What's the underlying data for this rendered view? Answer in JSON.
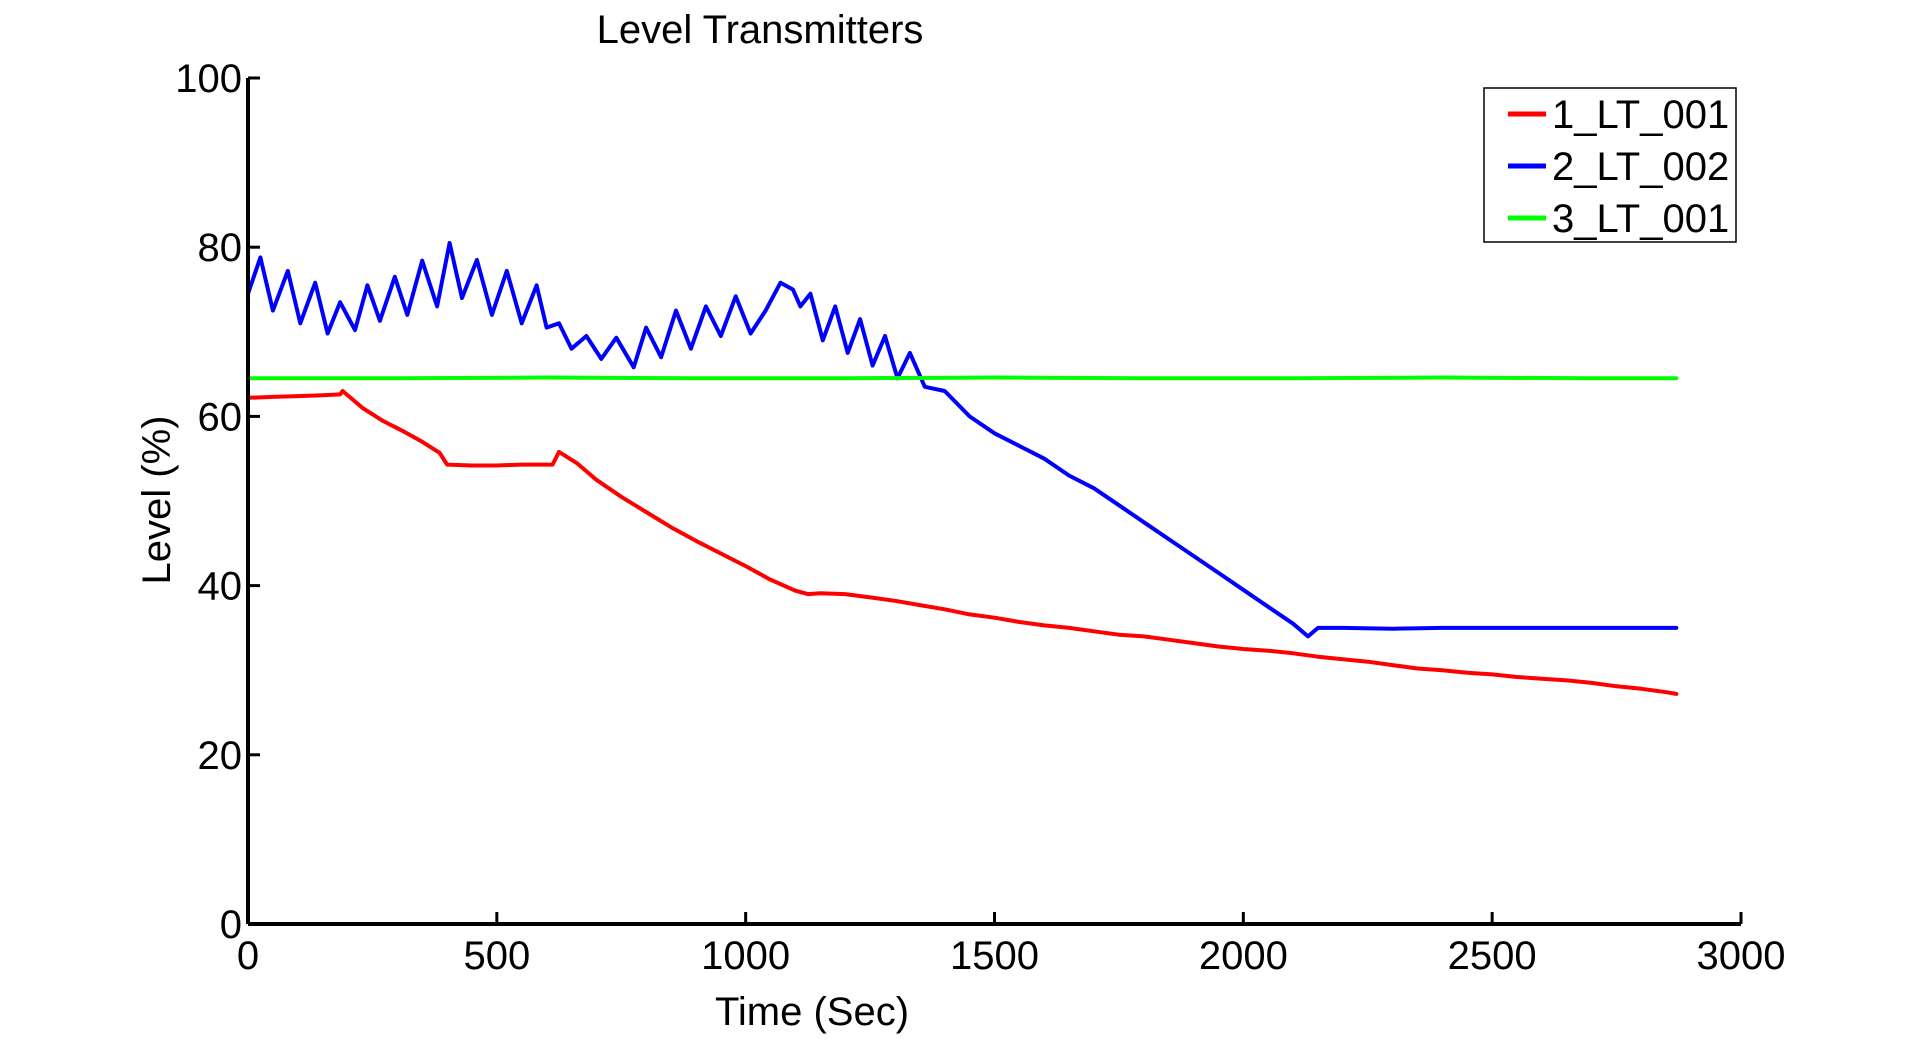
{
  "chart_data": {
    "type": "line",
    "title": "Level Transmitters",
    "xlabel": "Time (Sec)",
    "ylabel": "Level (%)",
    "xlim": [
      0,
      3000
    ],
    "ylim": [
      0,
      100
    ],
    "xticks": [
      0,
      500,
      1000,
      1500,
      2000,
      2500,
      3000
    ],
    "yticks": [
      0,
      20,
      40,
      60,
      80,
      100
    ],
    "grid": false,
    "legend_position": "top-right",
    "series": [
      {
        "name": "1_LT_001",
        "color": "#ff0000",
        "x": [
          0,
          50,
          100,
          150,
          185,
          190,
          230,
          270,
          310,
          350,
          385,
          400,
          450,
          500,
          550,
          600,
          612,
          625,
          660,
          700,
          750,
          800,
          850,
          900,
          950,
          1000,
          1050,
          1100,
          1125,
          1150,
          1200,
          1250,
          1300,
          1350,
          1400,
          1450,
          1500,
          1550,
          1600,
          1650,
          1700,
          1750,
          1800,
          1850,
          1900,
          1950,
          2000,
          2050,
          2100,
          2150,
          2200,
          2250,
          2300,
          2350,
          2400,
          2450,
          2500,
          2550,
          2600,
          2650,
          2700,
          2750,
          2800,
          2850,
          2870
        ],
        "y": [
          62.2,
          62.3,
          62.4,
          62.5,
          62.6,
          63.0,
          61.0,
          59.5,
          58.3,
          57.0,
          55.7,
          54.3,
          54.2,
          54.2,
          54.3,
          54.3,
          54.3,
          55.8,
          54.5,
          52.5,
          50.5,
          48.7,
          46.9,
          45.3,
          43.8,
          42.3,
          40.7,
          39.4,
          39.0,
          39.1,
          39.0,
          38.6,
          38.2,
          37.7,
          37.2,
          36.6,
          36.2,
          35.7,
          35.3,
          35.0,
          34.6,
          34.2,
          34.0,
          33.6,
          33.2,
          32.8,
          32.5,
          32.3,
          32.0,
          31.6,
          31.3,
          31.0,
          30.6,
          30.2,
          30.0,
          29.7,
          29.5,
          29.2,
          29.0,
          28.8,
          28.5,
          28.1,
          27.8,
          27.4,
          27.2
        ]
      },
      {
        "name": "2_LT_002",
        "color": "#0000ff",
        "x": [
          0,
          25,
          50,
          80,
          105,
          135,
          160,
          185,
          215,
          240,
          265,
          295,
          320,
          350,
          380,
          405,
          430,
          460,
          490,
          520,
          550,
          580,
          600,
          625,
          650,
          680,
          710,
          740,
          775,
          800,
          830,
          860,
          890,
          920,
          950,
          980,
          1010,
          1040,
          1070,
          1095,
          1110,
          1130,
          1155,
          1180,
          1205,
          1230,
          1255,
          1280,
          1305,
          1330,
          1360,
          1400,
          1450,
          1500,
          1550,
          1600,
          1650,
          1700,
          1750,
          1800,
          1850,
          1900,
          1950,
          2000,
          2050,
          2100,
          2130,
          2150,
          2200,
          2300,
          2400,
          2500,
          2600,
          2700,
          2800,
          2870
        ],
        "y": [
          74.5,
          78.8,
          72.5,
          77.2,
          71.0,
          75.8,
          69.8,
          73.5,
          70.2,
          75.5,
          71.3,
          76.5,
          72.0,
          78.4,
          73.0,
          80.5,
          74.0,
          78.5,
          72.0,
          77.2,
          71.0,
          75.5,
          70.5,
          71.0,
          68.0,
          69.5,
          66.8,
          69.3,
          65.8,
          70.5,
          67.0,
          72.5,
          68.0,
          73.0,
          69.5,
          74.2,
          69.8,
          72.5,
          75.8,
          75.0,
          73.0,
          74.5,
          69.0,
          73.0,
          67.5,
          71.5,
          66.0,
          69.5,
          64.5,
          67.5,
          63.5,
          63.0,
          60.0,
          58.0,
          56.5,
          55.0,
          53.0,
          51.5,
          49.5,
          47.5,
          45.5,
          43.5,
          41.5,
          39.5,
          37.5,
          35.5,
          34.0,
          35.0,
          35.0,
          34.9,
          35.0,
          35.0,
          35.0,
          35.0,
          35.0,
          35.0
        ]
      },
      {
        "name": "3_LT_001",
        "color": "#00ff00",
        "x": [
          0,
          300,
          600,
          900,
          1200,
          1500,
          1800,
          2100,
          2400,
          2700,
          2870
        ],
        "y": [
          64.5,
          64.5,
          64.6,
          64.5,
          64.5,
          64.6,
          64.5,
          64.5,
          64.6,
          64.5,
          64.5
        ]
      }
    ]
  }
}
